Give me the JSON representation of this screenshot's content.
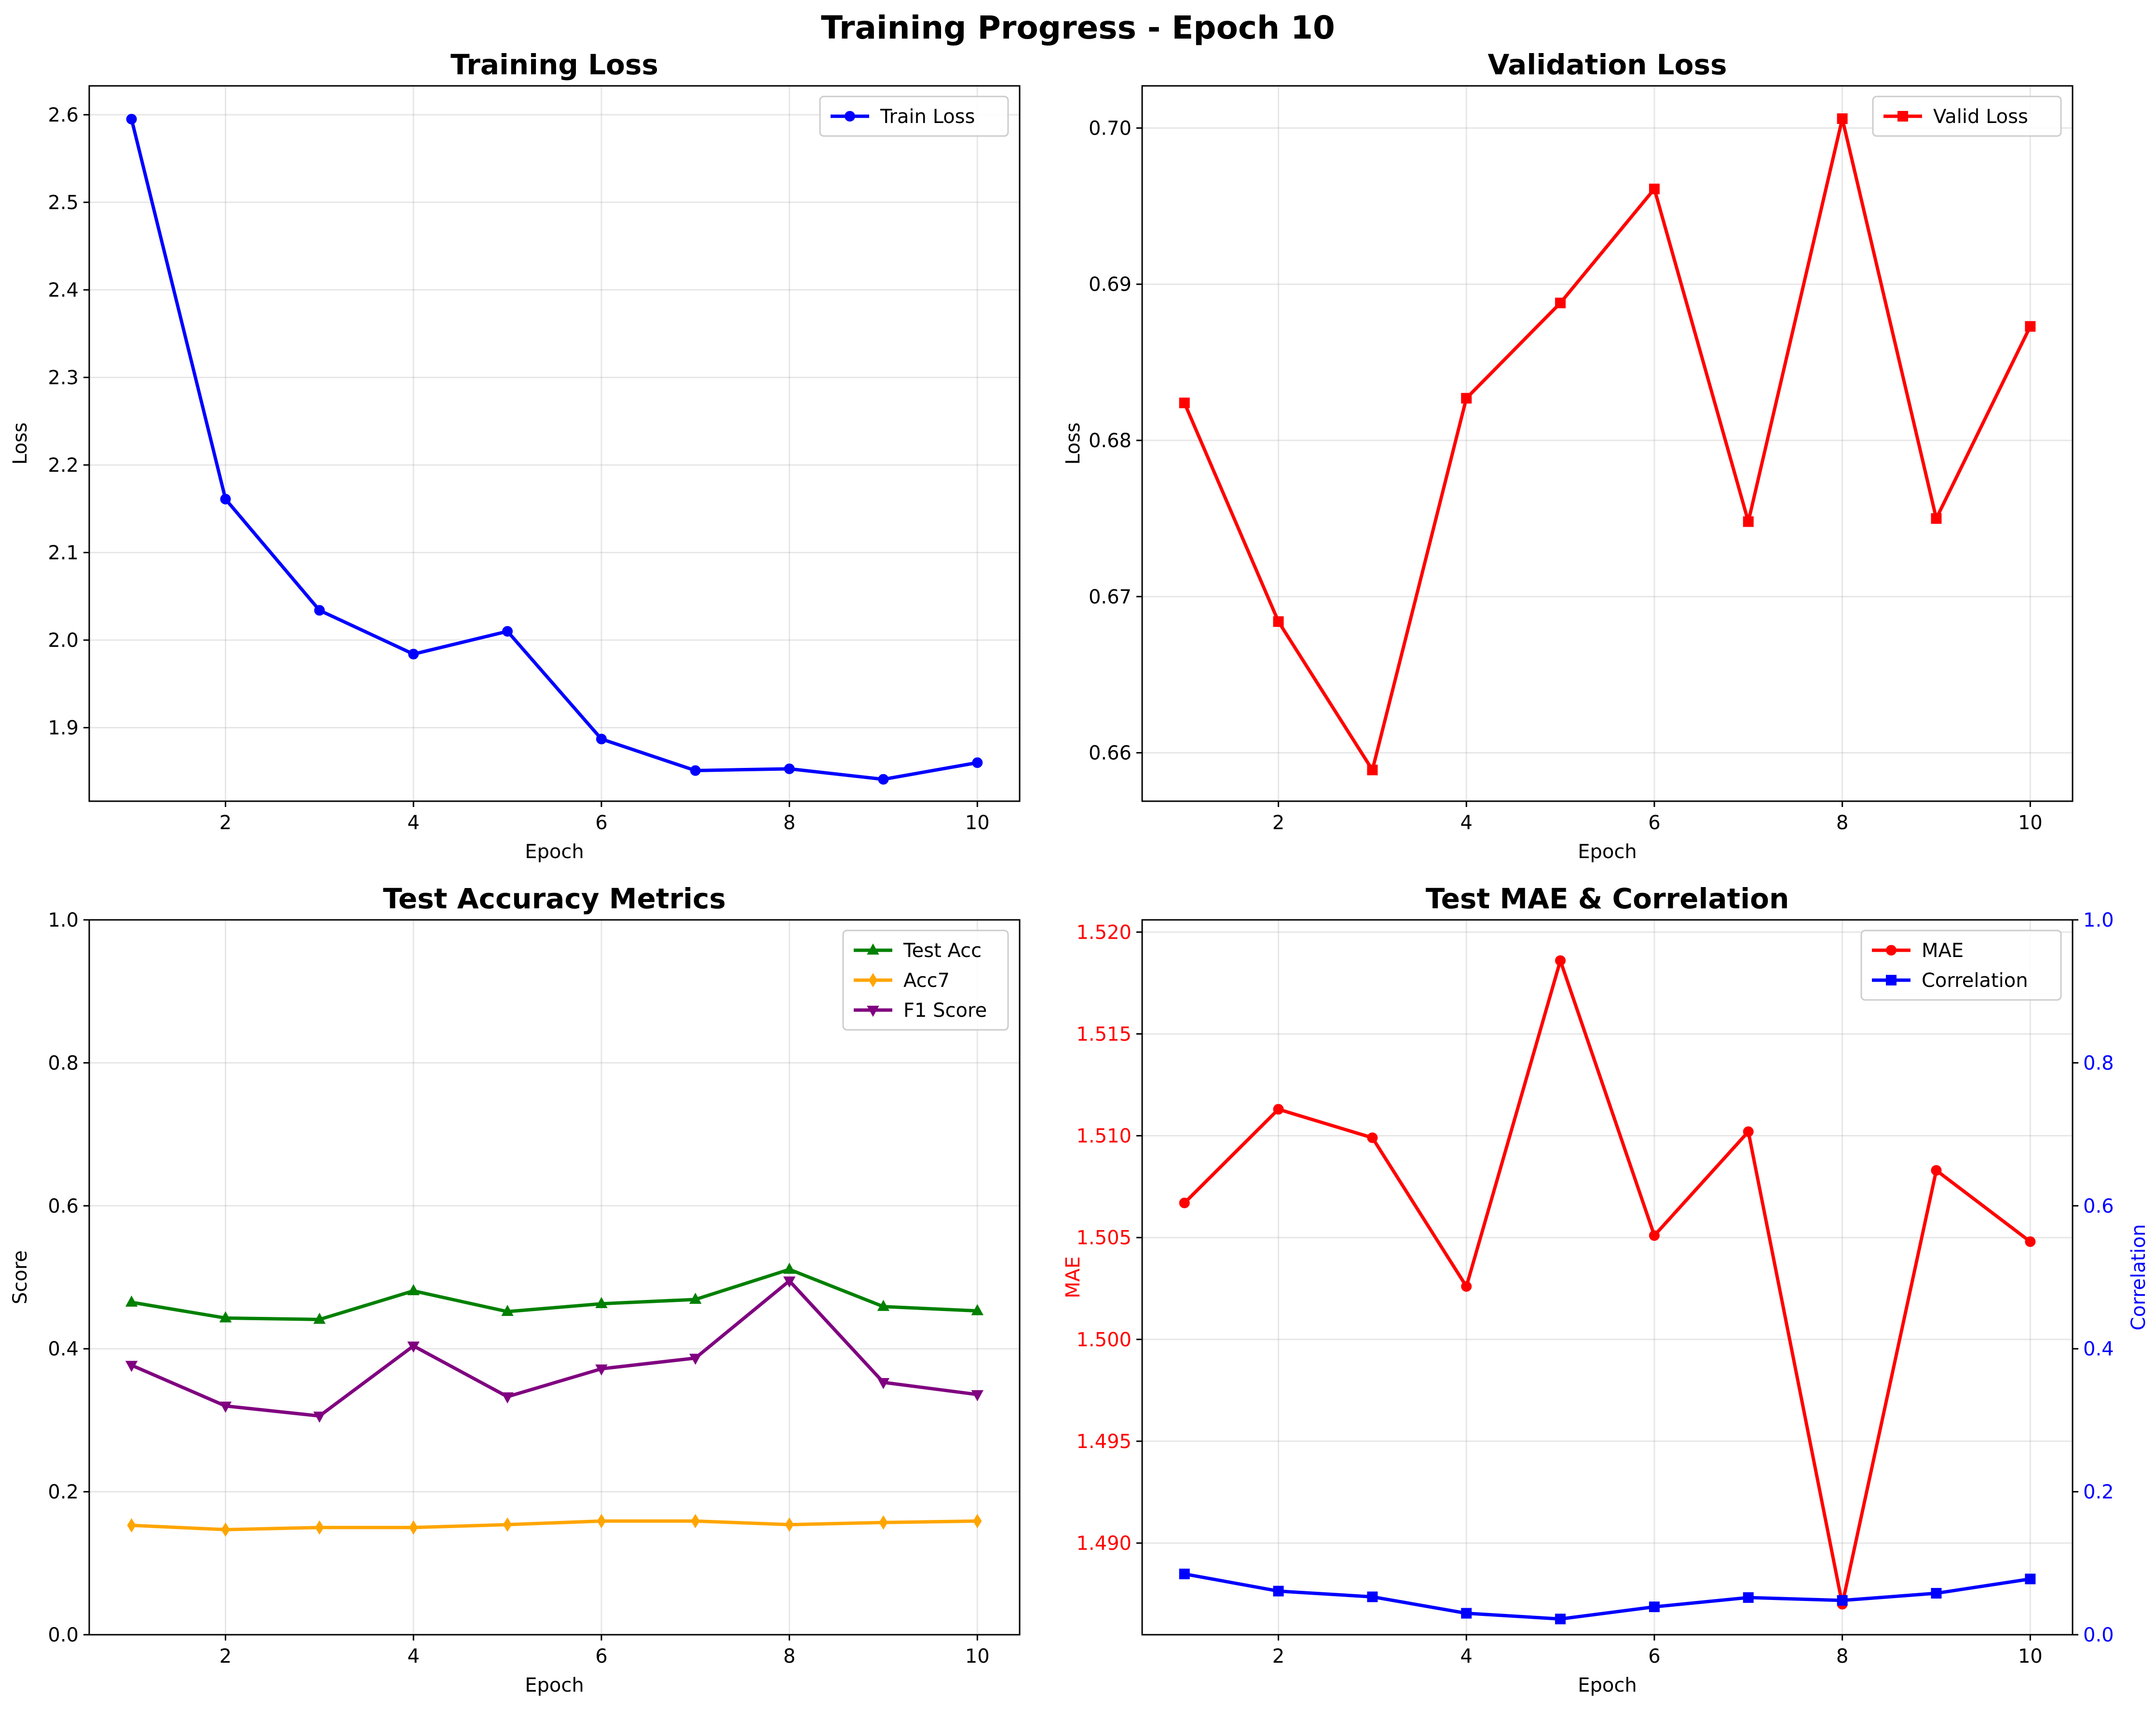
{
  "figure": {
    "suptitle": "Training Progress - Epoch 10"
  },
  "chart_data": [
    {
      "type": "line",
      "title": "Training Loss",
      "xlabel": "Epoch",
      "ylabel": "Loss",
      "x": [
        1,
        2,
        3,
        4,
        5,
        6,
        7,
        8,
        9,
        10
      ],
      "xlim": [
        0.55,
        10.45
      ],
      "ylim": [
        1.816,
        2.633
      ],
      "xticks": [
        2,
        4,
        6,
        8,
        10
      ],
      "yticks": [
        1.9,
        2.0,
        2.1,
        2.2,
        2.3,
        2.4,
        2.5,
        2.6
      ],
      "grid": true,
      "legend": "upper right",
      "series": [
        {
          "name": "Train Loss",
          "color": "#0000ff",
          "marker": "circle",
          "values": [
            2.595,
            2.161,
            2.034,
            1.984,
            2.01,
            1.887,
            1.851,
            1.853,
            1.841,
            1.86
          ]
        }
      ]
    },
    {
      "type": "line",
      "title": "Validation Loss",
      "xlabel": "Epoch",
      "ylabel": "Loss",
      "x": [
        1,
        2,
        3,
        4,
        5,
        6,
        7,
        8,
        9,
        10
      ],
      "xlim": [
        0.55,
        10.45
      ],
      "ylim": [
        0.6569,
        0.7027
      ],
      "xticks": [
        2,
        4,
        6,
        8,
        10
      ],
      "yticks": [
        0.66,
        0.67,
        0.68,
        0.69,
        0.7
      ],
      "grid": true,
      "legend": "upper right",
      "series": [
        {
          "name": "Valid Loss",
          "color": "#ff0000",
          "marker": "square",
          "values": [
            0.6824,
            0.6684,
            0.6589,
            0.6827,
            0.6888,
            0.6961,
            0.6748,
            0.7006,
            0.675,
            0.6873
          ]
        }
      ]
    },
    {
      "type": "line",
      "title": "Test Accuracy Metrics",
      "xlabel": "Epoch",
      "ylabel": "Score",
      "x": [
        1,
        2,
        3,
        4,
        5,
        6,
        7,
        8,
        9,
        10
      ],
      "xlim": [
        0.55,
        10.45
      ],
      "ylim": [
        0,
        1
      ],
      "xticks": [
        2,
        4,
        6,
        8,
        10
      ],
      "yticks": [
        0.0,
        0.2,
        0.4,
        0.6,
        0.8,
        1.0
      ],
      "grid": true,
      "legend": "upper right",
      "series": [
        {
          "name": "Test Acc",
          "color": "#008000",
          "marker": "triangle-up",
          "values": [
            0.465,
            0.443,
            0.441,
            0.481,
            0.452,
            0.463,
            0.469,
            0.511,
            0.459,
            0.453
          ]
        },
        {
          "name": "Acc7",
          "color": "#ffa500",
          "marker": "diamond",
          "values": [
            0.153,
            0.147,
            0.15,
            0.15,
            0.154,
            0.159,
            0.159,
            0.154,
            0.157,
            0.159
          ]
        },
        {
          "name": "F1 Score",
          "color": "#800080",
          "marker": "triangle-down",
          "values": [
            0.377,
            0.32,
            0.306,
            0.404,
            0.333,
            0.372,
            0.387,
            0.495,
            0.353,
            0.336
          ]
        }
      ]
    },
    {
      "type": "line",
      "title": "Test MAE & Correlation",
      "xlabel": "Epoch",
      "ylabel": "MAE",
      "ylabel_right": "Correlation",
      "x": [
        1,
        2,
        3,
        4,
        5,
        6,
        7,
        8,
        9,
        10
      ],
      "xlim": [
        0.55,
        10.45
      ],
      "ylim": [
        1.4855,
        1.5206
      ],
      "ylim_right": [
        0,
        1
      ],
      "xticks": [
        2,
        4,
        6,
        8,
        10
      ],
      "yticks": [
        1.49,
        1.495,
        1.5,
        1.505,
        1.51,
        1.515,
        1.52
      ],
      "yticks_right": [
        0.0,
        0.2,
        0.4,
        0.6,
        0.8,
        1.0
      ],
      "left_axis_color": "#ff0000",
      "right_axis_color": "#0000ff",
      "grid": true,
      "legend": "upper right",
      "series": [
        {
          "name": "MAE",
          "color": "#ff0000",
          "marker": "circle",
          "axis": "left",
          "values": [
            1.5067,
            1.5113,
            1.5099,
            1.5026,
            1.5186,
            1.5051,
            1.5102,
            1.487,
            1.5083,
            1.5048
          ]
        },
        {
          "name": "Correlation",
          "color": "#0000ff",
          "marker": "square",
          "axis": "right",
          "values": [
            0.085,
            0.061,
            0.053,
            0.03,
            0.022,
            0.039,
            0.052,
            0.048,
            0.058,
            0.078
          ]
        }
      ]
    }
  ]
}
